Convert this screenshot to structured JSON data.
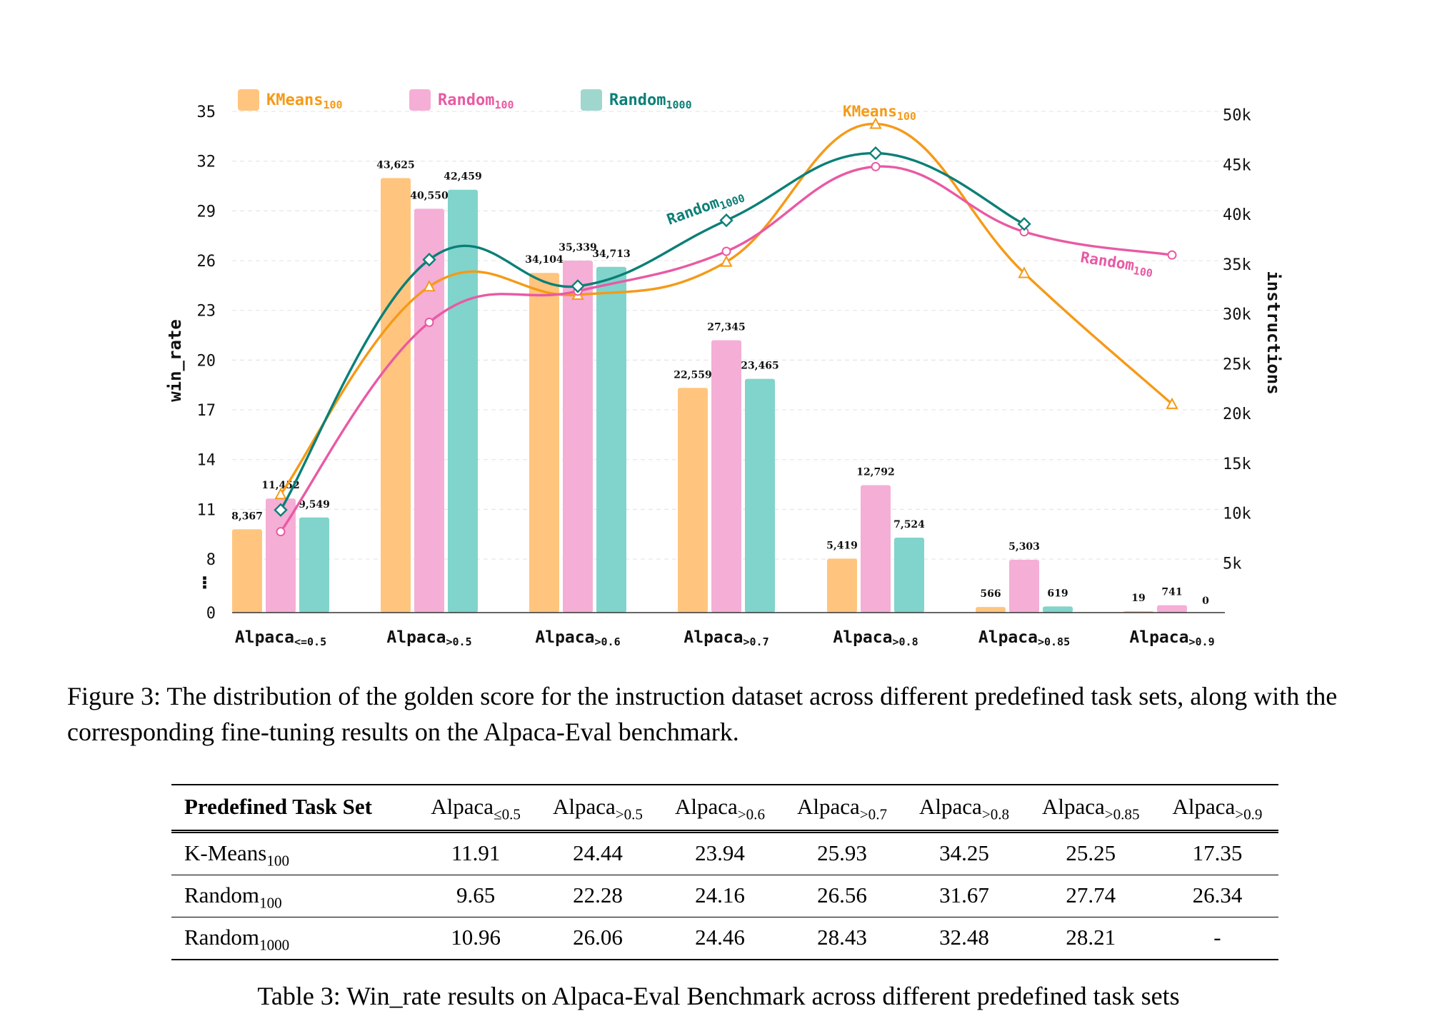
{
  "chart_data": {
    "type": "bar+line",
    "categories": [
      {
        "base": "Alpaca",
        "sub": "<=0.5"
      },
      {
        "base": "Alpaca",
        "sub": ">0.5"
      },
      {
        "base": "Alpaca",
        "sub": ">0.6"
      },
      {
        "base": "Alpaca",
        "sub": ">0.7"
      },
      {
        "base": "Alpaca",
        "sub": ">0.8"
      },
      {
        "base": "Alpaca",
        "sub": ">0.85"
      },
      {
        "base": "Alpaca",
        "sub": ">0.9"
      }
    ],
    "ylabel_left": "win_rate",
    "ylabel_right": "instructions",
    "left_ticks": [
      "0",
      "8",
      "11",
      "14",
      "17",
      "20",
      "23",
      "26",
      "29",
      "32",
      "35"
    ],
    "left_break_marker": "⠇",
    "right_ticks": [
      "5k",
      "10k",
      "15k",
      "20k",
      "25k",
      "30k",
      "35k",
      "40k",
      "45k",
      "50k"
    ],
    "right_ylim": [
      0,
      50000
    ],
    "legend": [
      {
        "base": "KMeans",
        "sub": "100",
        "color": "#f59a16",
        "fill": "#ffc57f"
      },
      {
        "base": "Random",
        "sub": "100",
        "color": "#e85aa4",
        "fill": "#f5aed6"
      },
      {
        "base": "Random",
        "sub": "1000",
        "color": "#0b7f77",
        "fill": "#9fd7cf"
      }
    ],
    "bar_series": [
      {
        "color": "#ffc57f",
        "values": [
          8367,
          43625,
          34104,
          22559,
          5419,
          566,
          19
        ],
        "labels": [
          "8,367",
          "43,625",
          "34,104",
          "22,559",
          "5,419",
          "566",
          "19"
        ]
      },
      {
        "color": "#f5aed6",
        "values": [
          11452,
          40550,
          35339,
          27345,
          12792,
          5303,
          741
        ],
        "labels": [
          "11,452",
          "40,550",
          "35,339",
          "27,345",
          "12,792",
          "5,303",
          "741"
        ]
      },
      {
        "color": "#80d4cc",
        "values": [
          9549,
          42459,
          34713,
          23465,
          7524,
          619,
          0
        ],
        "labels": [
          "9,549",
          "42,459",
          "34,713",
          "23,465",
          "7,524",
          "619",
          "0"
        ]
      }
    ],
    "line_series": [
      {
        "base": "KMeans",
        "sub": "100",
        "color": "#f59a16",
        "marker": "triangle",
        "values": [
          11.91,
          24.44,
          23.94,
          25.93,
          34.25,
          25.25,
          17.35
        ]
      },
      {
        "base": "Random",
        "sub": "100",
        "color": "#e85aa4",
        "marker": "circle",
        "values": [
          9.65,
          22.28,
          24.16,
          26.56,
          31.67,
          27.74,
          26.34
        ]
      },
      {
        "base": "Random",
        "sub": "1000",
        "color": "#0b7f77",
        "marker": "diamond",
        "values": [
          10.96,
          26.06,
          24.46,
          28.43,
          32.48,
          28.21,
          null
        ]
      }
    ]
  },
  "figure_caption": "Figure 3: The distribution of the golden score for the instruction dataset across different predefined task sets, along with the corresponding fine-tuning results on the Alpaca-Eval benchmark.",
  "table": {
    "header_first": "Predefined Task Set",
    "columns": [
      {
        "base": "Alpaca",
        "sub": "≤0.5"
      },
      {
        "base": "Alpaca",
        "sub": ">0.5"
      },
      {
        "base": "Alpaca",
        "sub": ">0.6"
      },
      {
        "base": "Alpaca",
        "sub": ">0.7"
      },
      {
        "base": "Alpaca",
        "sub": ">0.8"
      },
      {
        "base": "Alpaca",
        "sub": ">0.85"
      },
      {
        "base": "Alpaca",
        "sub": ">0.9"
      }
    ],
    "rows": [
      {
        "base": "K-Means",
        "sub": "100",
        "values": [
          "11.91",
          "24.44",
          "23.94",
          "25.93",
          "34.25",
          "25.25",
          "17.35"
        ]
      },
      {
        "base": "Random",
        "sub": "100",
        "values": [
          "9.65",
          "22.28",
          "24.16",
          "26.56",
          "31.67",
          "27.74",
          "26.34"
        ]
      },
      {
        "base": "Random",
        "sub": "1000",
        "values": [
          "10.96",
          "26.06",
          "24.46",
          "28.43",
          "32.48",
          "28.21",
          "-"
        ]
      }
    ]
  },
  "table_caption": "Table 3: Win_rate results on Alpaca-Eval Benchmark across different predefined task sets"
}
